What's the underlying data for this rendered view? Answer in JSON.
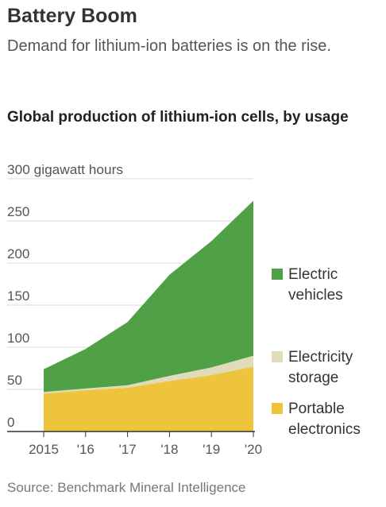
{
  "headline": "Battery Boom",
  "dek": "Demand for lithium-ion batteries is on the rise.",
  "source": "Source: Benchmark Mineral Intelligence",
  "colors": {
    "electric_vehicles": "#50a045",
    "electricity_storage": "#e0dbb9",
    "portable_electronics": "#eec43d",
    "grid": "#d8d8d8",
    "axis": "#333333"
  },
  "chart_data": {
    "type": "area",
    "stacked": true,
    "title": "Global production of lithium-ion cells, by usage",
    "unit_label": "300 gigawatt hours",
    "x": [
      "2015",
      "'16",
      "'17",
      "'18",
      "'19",
      "'20"
    ],
    "ylim": [
      0,
      300
    ],
    "y_ticks": [
      {
        "value": 0,
        "label": "0"
      },
      {
        "value": 50,
        "label": "50"
      },
      {
        "value": 100,
        "label": "100"
      },
      {
        "value": 150,
        "label": "150"
      },
      {
        "value": 200,
        "label": "200"
      },
      {
        "value": 250,
        "label": "250"
      }
    ],
    "grid": true,
    "legend_position": "right",
    "series": [
      {
        "name": "Portable electronics",
        "color_key": "portable_electronics",
        "values": [
          45,
          49,
          52,
          60,
          67,
          77
        ]
      },
      {
        "name": "Electricity storage",
        "color_key": "electricity_storage",
        "values": [
          2,
          2,
          3,
          6,
          9,
          13
        ]
      },
      {
        "name": "Electric vehicles",
        "color_key": "electric_vehicles",
        "values": [
          27,
          47,
          75,
          120,
          150,
          184
        ]
      }
    ]
  }
}
